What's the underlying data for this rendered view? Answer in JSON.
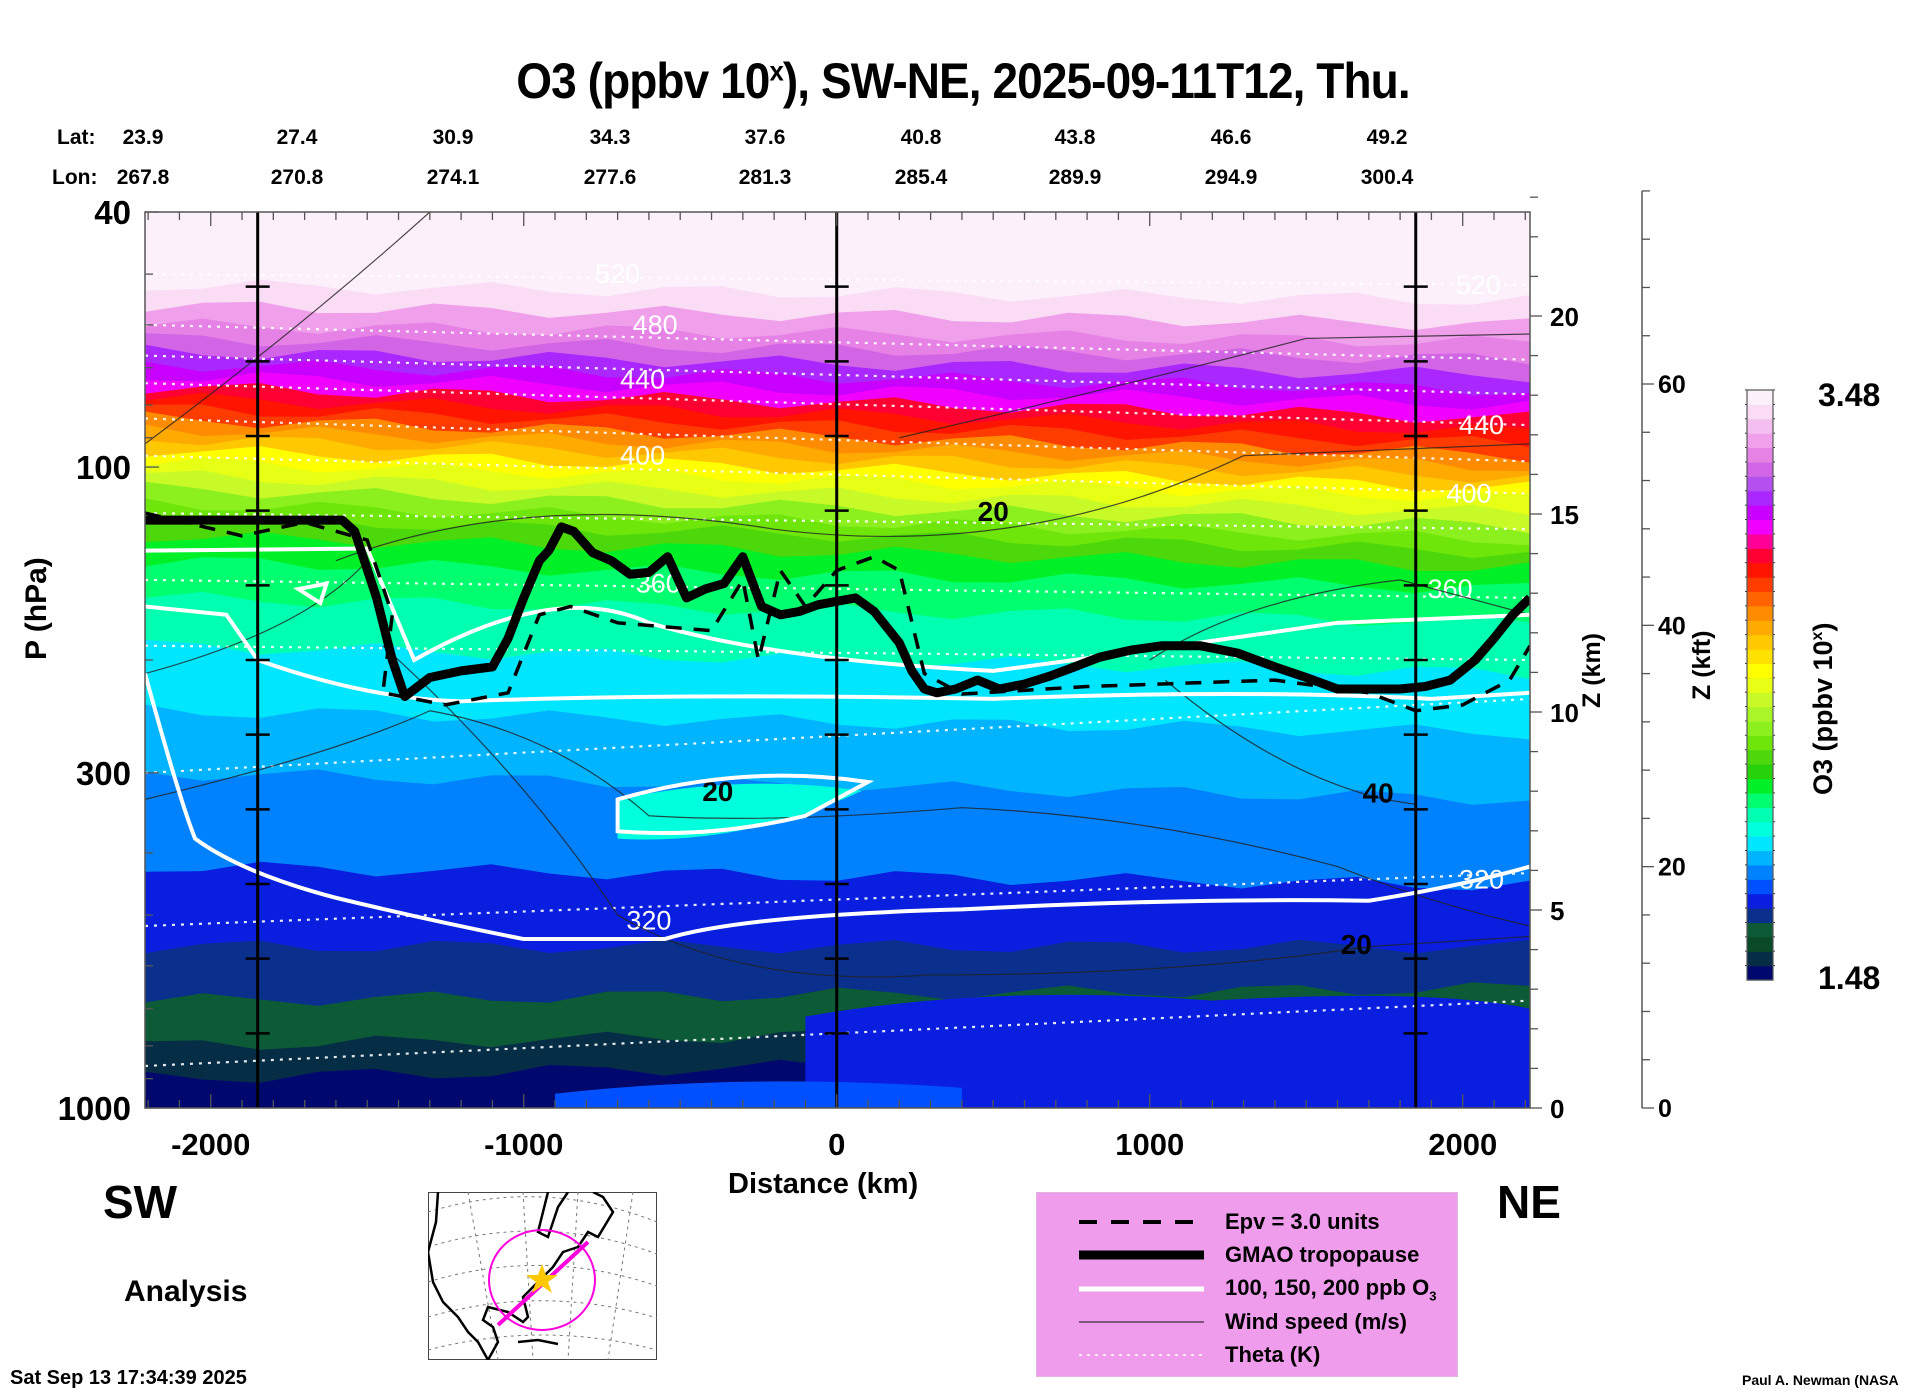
{
  "header": {
    "title_main": "O3 (ppbv 10",
    "title_sup": "x",
    "title_rest": "), SW-NE, 2025-09-11T12, Thu."
  },
  "coords": {
    "lat_label": "Lat:",
    "lon_label": "Lon:",
    "lat": [
      "23.9",
      "27.4",
      "30.9",
      "34.3",
      "37.6",
      "40.8",
      "43.8",
      "46.6",
      "49.2"
    ],
    "lon": [
      "267.8",
      "270.8",
      "274.1",
      "277.6",
      "281.3",
      "285.4",
      "289.9",
      "294.9",
      "300.4"
    ]
  },
  "labels": {
    "sw": "SW",
    "ne": "NE",
    "analysis": "Analysis",
    "timestamp": "Sat Sep 13 17:34:39 2025",
    "credit": "Paul A. Newman (NASA"
  },
  "legend": {
    "items": [
      {
        "style": "dashed",
        "label": "Epv = 3.0 units"
      },
      {
        "style": "thick",
        "label": "GMAO tropopause"
      },
      {
        "style": "white",
        "label": "100, 150, 200 ppb O",
        "sub": "3"
      },
      {
        "style": "thin",
        "label": "Wind speed (m/s)"
      },
      {
        "style": "dotted",
        "label": "Theta (K)"
      }
    ]
  },
  "colors": {
    "legend_bg": "#f09ced",
    "map_track": "#ff00dd",
    "map_star": "#ffc800"
  },
  "chart_data": {
    "type": "heatmap",
    "title": "O3 (ppbv 10^x), SW-NE, 2025-09-11T12, Thu.",
    "xlabel": "Distance (km)",
    "ylabel": "P (hPa)",
    "y2label": "Z (km)",
    "y3label": "Z (kft)",
    "colorbar_label": "O3 (ppbv 10^x)",
    "xlim": [
      -2210,
      2215
    ],
    "ylim": [
      1000,
      40
    ],
    "yscale": "log",
    "x_ticks": [
      -2000,
      -1000,
      0,
      1000,
      2000
    ],
    "x_tick_labels": [
      "-2000",
      "-1000",
      "0",
      "1000",
      "2000"
    ],
    "y_ticks": [
      40,
      100,
      300,
      1000
    ],
    "y_tick_labels": [
      "40",
      "100",
      "300",
      "1000"
    ],
    "z_km_ticks": [
      0,
      5,
      10,
      15,
      20
    ],
    "z_km_tick_labels": [
      "0",
      "5",
      "10",
      "15",
      "20"
    ],
    "z_kft_ticks": [
      0,
      20,
      40,
      60
    ],
    "z_kft_tick_labels": [
      "0",
      "20",
      "40",
      "60"
    ],
    "colorbar_range": [
      1.48,
      3.48
    ],
    "colorbar_min_label": "1.48",
    "colorbar_max_label": "3.48",
    "colorbar_colors": [
      "#00086e",
      "#062d46",
      "#0a4a28",
      "#0c5a36",
      "#0a2f8c",
      "#0a1ee0",
      "#0050ff",
      "#0082ff",
      "#00b4ff",
      "#00e6ff",
      "#00ffdc",
      "#00ffb0",
      "#00ff6e",
      "#00f028",
      "#28d20a",
      "#4cd80a",
      "#6ee60a",
      "#8cf01e",
      "#aaf528",
      "#c8fa28",
      "#e6ff14",
      "#ffff00",
      "#ffe100",
      "#ffc800",
      "#ffaa00",
      "#ff8c00",
      "#ff6400",
      "#ff3c00",
      "#ff1400",
      "#ff0032",
      "#ff0096",
      "#f000ff",
      "#c800ff",
      "#aa28ff",
      "#b450ef",
      "#d264e6",
      "#e682e6",
      "#f0a0eb",
      "#f5bef0",
      "#fadcf5",
      "#fcf0fb"
    ],
    "section_markers_km": [
      -1850,
      0,
      1850
    ],
    "tropopause_hPa": {
      "x": [
        -2210,
        -1580,
        -1540,
        -1470,
        -1420,
        -1380,
        -1300,
        -1200,
        -1100,
        -1050,
        -1000,
        -950,
        -920,
        -880,
        -840,
        -780,
        -720,
        -660,
        -600,
        -540,
        -480,
        -420,
        -360,
        -300,
        -240,
        -180,
        -120,
        -60,
        0,
        60,
        120,
        200,
        240,
        280,
        320,
        380,
        450,
        520,
        600,
        680,
        760,
        840,
        940,
        1040,
        1160,
        1280,
        1400,
        1500,
        1600,
        1700,
        1800,
        1880,
        1960,
        2040,
        2100,
        2160,
        2215
      ],
      "p": [
        121,
        121,
        126,
        160,
        200,
        228,
        213,
        208,
        205,
        185,
        160,
        140,
        135,
        124,
        126,
        136,
        140,
        147,
        146,
        138,
        160,
        155,
        152,
        138,
        165,
        170,
        168,
        164,
        162,
        160,
        168,
        188,
        208,
        222,
        225,
        222,
        215,
        222,
        218,
        212,
        205,
        198,
        193,
        190,
        190,
        195,
        205,
        213,
        222,
        222,
        222,
        220,
        215,
        200,
        185,
        170,
        160
      ]
    },
    "theta_levels_K": [
      320,
      360,
      400,
      440,
      480,
      520
    ],
    "wind_labels_ms": [
      20,
      40
    ],
    "ozone_contours_ppb": [
      100,
      150,
      200
    ]
  }
}
